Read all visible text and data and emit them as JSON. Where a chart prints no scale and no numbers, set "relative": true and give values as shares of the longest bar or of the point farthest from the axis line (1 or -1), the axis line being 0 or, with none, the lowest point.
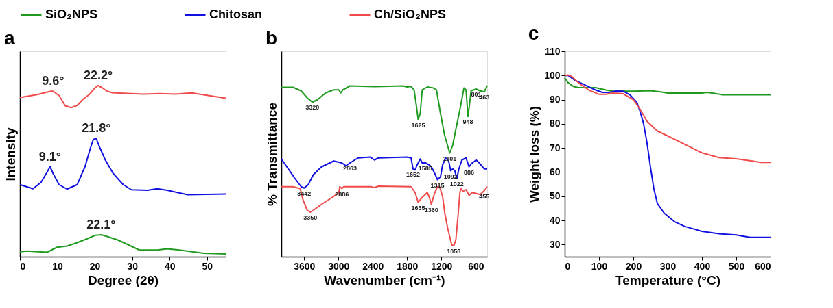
{
  "chart_data": [
    {
      "type": "line",
      "title": "a",
      "xlabel": "Degree (2θ)",
      "ylabel": "Intensity",
      "relative": true,
      "tick_labels": "x",
      "xlim": [
        0,
        55
      ],
      "xticks": [
        0,
        10,
        20,
        30,
        40,
        50
      ],
      "grid": false,
      "legend": "top",
      "series": [
        {
          "name": "SiO₂NPS",
          "color": "#1f9a1f",
          "x": [
            0,
            1.88,
            7.24,
            9.92,
            12.6,
            15.3,
            18.0,
            20.1,
            21.7,
            23.3,
            26.0,
            28.7,
            31.9,
            36.7,
            39.4,
            42.6,
            49.1,
            55
          ],
          "values": [
            0.029,
            0.033,
            0.026,
            0.055,
            0.062,
            0.082,
            0.105,
            0.125,
            0.128,
            0.118,
            0.099,
            0.072,
            0.039,
            0.039,
            0.046,
            0.039,
            0.02,
            0.016
          ]
        },
        {
          "name": "Chitosan",
          "color": "#1010e0",
          "x": [
            0,
            3.49,
            5.63,
            7.24,
            8.05,
            8.85,
            10.46,
            12.6,
            15.3,
            17.4,
            18.8,
            19.6,
            20.4,
            21.2,
            22.8,
            24.9,
            27.6,
            29.8,
            34.1,
            36.7,
            39.4,
            44.8,
            55
          ],
          "values": [
            0.421,
            0.397,
            0.434,
            0.493,
            0.526,
            0.487,
            0.421,
            0.395,
            0.421,
            0.526,
            0.632,
            0.684,
            0.691,
            0.645,
            0.566,
            0.487,
            0.421,
            0.391,
            0.388,
            0.397,
            0.388,
            0.362,
            0.366
          ]
        },
        {
          "name": "Ch/SiO₂NPS",
          "color": "#f04a4a",
          "x": [
            0,
            4.56,
            8.3,
            8.85,
            10.5,
            12.1,
            13.7,
            15.3,
            16.9,
            18.5,
            20.1,
            20.9,
            22.0,
            23.3,
            24.7,
            28.7,
            33.0,
            37.3,
            41.6,
            45.9,
            55
          ],
          "values": [
            0.93,
            0.947,
            0.967,
            0.967,
            0.941,
            0.882,
            0.871,
            0.884,
            0.921,
            0.947,
            0.987,
            1.0,
            0.987,
            0.967,
            0.958,
            0.954,
            0.95,
            0.953,
            0.95,
            0.957,
            0.926
          ]
        }
      ],
      "annotations": [
        {
          "text": "9.6°",
          "x": 8.85,
          "y": 0.967
        },
        {
          "text": "22.2°",
          "x": 20.9,
          "y": 1.0
        },
        {
          "text": "21.8°",
          "x": 20.4,
          "y": 0.691
        },
        {
          "text": "9.1°",
          "x": 8.05,
          "y": 0.526
        },
        {
          "text": "22.1°",
          "x": 21.7,
          "y": 0.128
        }
      ]
    },
    {
      "type": "line",
      "title": "b",
      "xlabel": "Wavenumber (cm⁻¹)",
      "ylabel": "% Transmittance",
      "relative": true,
      "tick_labels": "x",
      "xlim": [
        4000,
        400
      ],
      "xticks": [
        3600,
        3000,
        2400,
        1800,
        1200,
        600
      ],
      "grid": false,
      "legend": "top",
      "series": [
        {
          "name": "SiO₂NPS",
          "color": "#1f9a1f",
          "x": [
            4000,
            3796,
            3653,
            3547,
            3458,
            3369,
            3226,
            3084,
            2995,
            2959,
            2924,
            2799,
            2372,
            1874,
            1803,
            1732,
            1678,
            1643,
            1607,
            1571,
            1536,
            1447,
            1340,
            1287,
            1216,
            1144,
            1055,
            1002,
            948,
            877,
            806,
            770,
            735,
            699,
            682,
            593,
            522,
            450,
            400
          ],
          "values": [
            0.99,
            0.99,
            0.969,
            0.928,
            0.903,
            0.917,
            0.957,
            0.975,
            0.975,
            0.957,
            0.975,
            0.998,
            0.994,
            0.998,
            0.992,
            0.995,
            0.975,
            0.894,
            0.802,
            0.836,
            0.975,
            0.992,
            0.986,
            0.975,
            0.836,
            0.709,
            0.606,
            0.652,
            0.744,
            0.859,
            0.986,
            0.975,
            0.819,
            0.917,
            0.969,
            0.98,
            0.969,
            0.963,
            1.0
          ]
        },
        {
          "name": "Chitosan",
          "color": "#1010e0",
          "x": [
            4000,
            3903,
            3760,
            3653,
            3600,
            3529,
            3440,
            3297,
            3084,
            2942,
            2870,
            2799,
            2657,
            2443,
            2372,
            2301,
            1803,
            1732,
            1696,
            1660,
            1625,
            1571,
            1536,
            1482,
            1411,
            1376,
            1322,
            1269,
            1216,
            1180,
            1127,
            1073,
            1038,
            1002,
            966,
            931,
            895,
            842,
            770,
            717,
            682,
            593,
            539,
            450,
            400
          ],
          "values": [
            0.571,
            0.525,
            0.456,
            0.409,
            0.401,
            0.421,
            0.479,
            0.525,
            0.559,
            0.548,
            0.531,
            0.548,
            0.577,
            0.582,
            0.565,
            0.577,
            0.582,
            0.577,
            0.513,
            0.507,
            0.536,
            0.571,
            0.548,
            0.548,
            0.536,
            0.525,
            0.49,
            0.45,
            0.467,
            0.536,
            0.577,
            0.559,
            0.502,
            0.513,
            0.502,
            0.456,
            0.513,
            0.565,
            0.577,
            0.525,
            0.542,
            0.565,
            0.548,
            0.513,
            0.513
          ]
        },
        {
          "name": "Ch/SiO₂NPS",
          "color": "#f04a4a",
          "x": [
            4000,
            3796,
            3671,
            3618,
            3547,
            3493,
            3440,
            3297,
            3084,
            2995,
            2977,
            2942,
            2906,
            2799,
            2443,
            2372,
            2301,
            1732,
            1660,
            1607,
            1553,
            1447,
            1411,
            1376,
            1322,
            1269,
            1233,
            1180,
            1144,
            1091,
            1020,
            984,
            948,
            913,
            877,
            860,
            824,
            770,
            717,
            664,
            593,
            522,
            450,
            400
          ],
          "values": [
            0.409,
            0.409,
            0.398,
            0.329,
            0.271,
            0.26,
            0.271,
            0.306,
            0.352,
            0.375,
            0.409,
            0.398,
            0.409,
            0.409,
            0.409,
            0.404,
            0.412,
            0.409,
            0.375,
            0.317,
            0.34,
            0.375,
            0.346,
            0.306,
            0.369,
            0.409,
            0.409,
            0.352,
            0.26,
            0.167,
            0.069,
            0.063,
            0.098,
            0.225,
            0.375,
            0.398,
            0.381,
            0.392,
            0.358,
            0.375,
            0.369,
            0.363,
            0.386,
            0.409
          ]
        }
      ],
      "annotations": [
        {
          "text": "3320",
          "x": 3458,
          "y": 0.903
        },
        {
          "text": "1625",
          "x": 1607,
          "y": 0.802
        },
        {
          "text": "1101",
          "x": 1055,
          "y": 0.606
        },
        {
          "text": "948",
          "x": 735,
          "y": 0.819
        },
        {
          "text": "801",
          "x": 593,
          "y": 0.98
        },
        {
          "text": "463",
          "x": 450,
          "y": 0.963
        },
        {
          "text": "2863",
          "x": 2799,
          "y": 0.548
        },
        {
          "text": "1652",
          "x": 1696,
          "y": 0.513
        },
        {
          "text": "1585",
          "x": 1482,
          "y": 0.548
        },
        {
          "text": "1315",
          "x": 1269,
          "y": 0.45
        },
        {
          "text": "1092",
          "x": 1038,
          "y": 0.502
        },
        {
          "text": "1022",
          "x": 931,
          "y": 0.456
        },
        {
          "text": "886",
          "x": 717,
          "y": 0.525
        },
        {
          "text": "3442",
          "x": 3600,
          "y": 0.401
        },
        {
          "text": "2886",
          "x": 2942,
          "y": 0.398
        },
        {
          "text": "1635",
          "x": 1607,
          "y": 0.317
        },
        {
          "text": "1360",
          "x": 1376,
          "y": 0.306
        },
        {
          "text": "455",
          "x": 450,
          "y": 0.386
        },
        {
          "text": "3350",
          "x": 3493,
          "y": 0.26
        },
        {
          "text": "1058",
          "x": 984,
          "y": 0.063
        }
      ]
    },
    {
      "type": "line",
      "title": "c",
      "xlabel": "Temperature (°C)",
      "ylabel": "Weight loss (%)",
      "xlim": [
        0,
        600
      ],
      "xticks": [
        0,
        100,
        200,
        300,
        400,
        500,
        600
      ],
      "ylim": [
        25,
        110
      ],
      "yticks": [
        30,
        40,
        50,
        60,
        70,
        80,
        90,
        100,
        110
      ],
      "grid": false,
      "legend": "top",
      "series": [
        {
          "name": "SiO₂NPS",
          "color": "#1f9a1f",
          "x": [
            0,
            10,
            25,
            40,
            60,
            90,
            120,
            140,
            200,
            250,
            280,
            300,
            400,
            415,
            440,
            460,
            600
          ],
          "values": [
            99,
            97,
            95.5,
            95,
            95,
            95,
            94,
            93.5,
            93.5,
            93.7,
            93.2,
            92.7,
            92.7,
            93,
            92.5,
            92,
            92
          ]
        },
        {
          "name": "Chitosan",
          "color": "#1010e0",
          "x": [
            0,
            10,
            30,
            60,
            90,
            110,
            130,
            150,
            170,
            190,
            210,
            220,
            230,
            240,
            250,
            260,
            270,
            290,
            320,
            350,
            400,
            450,
            500,
            540,
            600
          ],
          "values": [
            100,
            100,
            98,
            96,
            94,
            93,
            93,
            93.6,
            93.5,
            92,
            89,
            85,
            80,
            72,
            62,
            53,
            47,
            43,
            39.5,
            37.5,
            35.5,
            34.5,
            34,
            33,
            33
          ]
        },
        {
          "name": "Ch/SiO₂NPS",
          "color": "#f04a4a",
          "x": [
            0,
            10,
            20,
            40,
            70,
            100,
            120,
            140,
            170,
            200,
            220,
            240,
            270,
            300,
            350,
            400,
            450,
            500,
            550,
            570,
            600
          ],
          "values": [
            100,
            100.2,
            99.7,
            97,
            94,
            92.2,
            92.2,
            92.7,
            92.5,
            90,
            86,
            81,
            77,
            75,
            71.5,
            68,
            66,
            65.5,
            64.5,
            64,
            64
          ]
        }
      ]
    }
  ]
}
